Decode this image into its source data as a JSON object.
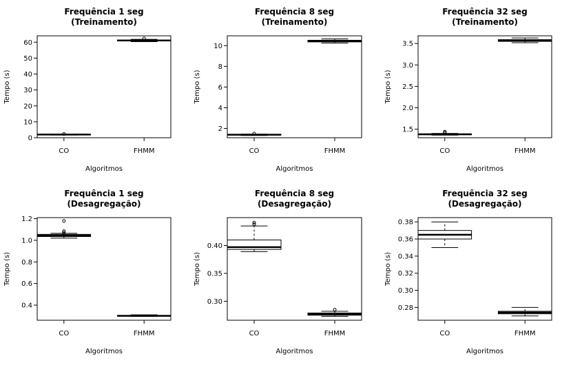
{
  "chart_data": [
    {
      "type": "boxplot",
      "title": "Frequência 1 seg",
      "subtitle": "(Treinamento)",
      "xlabel": "Algoritmos",
      "ylabel": "Tempo (s)",
      "categories": [
        "CO",
        "FHMM"
      ],
      "ylim": [
        0,
        64
      ],
      "yticks": [
        0,
        10,
        20,
        30,
        40,
        50,
        60
      ],
      "ytick_labels": [
        "0",
        "10",
        "20",
        "30",
        "40",
        "50",
        "60"
      ],
      "boxes": [
        {
          "min": 1.7,
          "q1": 1.9,
          "median": 2.0,
          "q3": 2.1,
          "max": 2.2,
          "outliers": [
            2.4
          ]
        },
        {
          "min": 60.3,
          "q1": 60.8,
          "median": 61.1,
          "q3": 61.4,
          "max": 61.8,
          "outliers": [
            62.3
          ]
        }
      ]
    },
    {
      "type": "boxplot",
      "title": "Frequência 8 seg",
      "subtitle": "(Treinamento)",
      "xlabel": "Algoritmos",
      "ylabel": "Tempo (s)",
      "categories": [
        "CO",
        "FHMM"
      ],
      "ylim": [
        1.1,
        10.95
      ],
      "yticks": [
        2,
        4,
        6,
        8,
        10
      ],
      "ytick_labels": [
        "2",
        "4",
        "6",
        "8",
        "10"
      ],
      "boxes": [
        {
          "min": 1.32,
          "q1": 1.36,
          "median": 1.39,
          "q3": 1.42,
          "max": 1.45,
          "outliers": [
            1.5
          ]
        },
        {
          "min": 10.25,
          "q1": 10.36,
          "median": 10.44,
          "q3": 10.52,
          "max": 10.65,
          "outliers": []
        }
      ]
    },
    {
      "type": "boxplot",
      "title": "Frequência 32 seg",
      "subtitle": "(Treinamento)",
      "xlabel": "Algoritmos",
      "ylabel": "Tempo (s)",
      "categories": [
        "CO",
        "FHMM"
      ],
      "ylim": [
        1.3,
        3.68
      ],
      "yticks": [
        1.5,
        2.0,
        2.5,
        3.0,
        3.5
      ],
      "ytick_labels": [
        "1.5",
        "2.0",
        "2.5",
        "3.0",
        "3.5"
      ],
      "boxes": [
        {
          "min": 1.36,
          "q1": 1.37,
          "median": 1.38,
          "q3": 1.39,
          "max": 1.4,
          "outliers": [
            1.42,
            1.44
          ]
        },
        {
          "min": 3.52,
          "q1": 3.55,
          "median": 3.57,
          "q3": 3.59,
          "max": 3.63,
          "outliers": []
        }
      ]
    },
    {
      "type": "boxplot",
      "title": "Frequência 1 seg",
      "subtitle": "(Desagregação)",
      "xlabel": "Algoritmos",
      "ylabel": "Tempo (s)",
      "categories": [
        "CO",
        "FHMM"
      ],
      "ylim": [
        0.26,
        1.21
      ],
      "yticks": [
        0.4,
        0.6,
        0.8,
        1.0,
        1.2
      ],
      "ytick_labels": [
        "0.4",
        "0.6",
        "0.8",
        "1.0",
        "1.2"
      ],
      "boxes": [
        {
          "min": 1.02,
          "q1": 1.035,
          "median": 1.045,
          "q3": 1.055,
          "max": 1.065,
          "outliers": [
            1.07,
            1.085,
            1.18
          ]
        },
        {
          "min": 0.295,
          "q1": 0.298,
          "median": 0.301,
          "q3": 0.305,
          "max": 0.31,
          "outliers": []
        }
      ]
    },
    {
      "type": "boxplot",
      "title": "Frequência 8 seg",
      "subtitle": "(Desagregação)",
      "xlabel": "Algoritmos",
      "ylabel": "Tempo (s)",
      "categories": [
        "CO",
        "FHMM"
      ],
      "ylim": [
        0.266,
        0.45
      ],
      "yticks": [
        0.3,
        0.35,
        0.4
      ],
      "ytick_labels": [
        "0.30",
        "0.35",
        "0.40"
      ],
      "boxes": [
        {
          "min": 0.389,
          "q1": 0.393,
          "median": 0.397,
          "q3": 0.41,
          "max": 0.435,
          "outliers": [
            0.438,
            0.441
          ]
        },
        {
          "min": 0.273,
          "q1": 0.275,
          "median": 0.277,
          "q3": 0.279,
          "max": 0.282,
          "outliers": [
            0.285
          ]
        }
      ]
    },
    {
      "type": "boxplot",
      "title": "Frequência 32 seg",
      "subtitle": "(Desagregação)",
      "xlabel": "Algoritmos",
      "ylabel": "Tempo (s)",
      "categories": [
        "CO",
        "FHMM"
      ],
      "ylim": [
        0.265,
        0.385
      ],
      "yticks": [
        0.28,
        0.3,
        0.32,
        0.34,
        0.36,
        0.38
      ],
      "ytick_labels": [
        "0.28",
        "0.30",
        "0.32",
        "0.34",
        "0.36",
        "0.38"
      ],
      "boxes": [
        {
          "min": 0.35,
          "q1": 0.36,
          "median": 0.365,
          "q3": 0.37,
          "max": 0.38,
          "outliers": []
        },
        {
          "min": 0.27,
          "q1": 0.2725,
          "median": 0.274,
          "q3": 0.2755,
          "max": 0.28,
          "outliers": []
        }
      ]
    }
  ]
}
